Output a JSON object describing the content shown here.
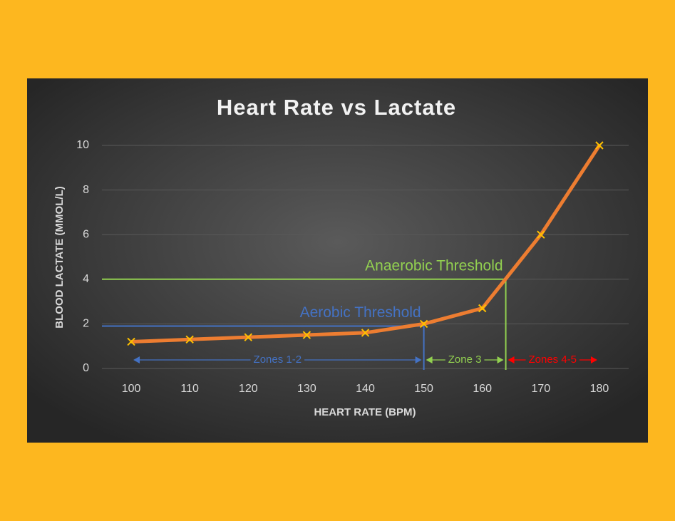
{
  "chart_data": {
    "type": "line",
    "title": "Heart Rate vs Lactate",
    "x_label": "HEART RATE (BPM)",
    "y_label": "BLOOD LACTATE (MMOL/L)",
    "x": [
      100,
      110,
      120,
      130,
      140,
      150,
      160,
      170,
      180
    ],
    "series": [
      {
        "color": "#ED7D31",
        "marker_color": "#FFC000",
        "values": [
          1.2,
          1.3,
          1.4,
          1.5,
          1.6,
          2.0,
          2.7,
          6.0,
          10
        ]
      }
    ],
    "xlim": [
      95,
      185
    ],
    "xticks": [
      100,
      110,
      120,
      130,
      140,
      150,
      160,
      170,
      180
    ],
    "ylim": [
      0,
      10
    ],
    "yticks": [
      0,
      2,
      4,
      6,
      8,
      10
    ],
    "grid": true,
    "thresholds": [
      {
        "label": "Aerobic Threshold",
        "x": 150,
        "y": 1.9,
        "color": "#4472C4"
      },
      {
        "label": "Anaerobic Threshold",
        "x": 164,
        "y": 4,
        "color": "#92D050"
      }
    ],
    "zones": [
      {
        "label": "Zones 1-2",
        "from": 100,
        "to": 150,
        "color": "#4472C4"
      },
      {
        "label": "Zone 3",
        "from": 150,
        "to": 164,
        "color": "#92D050"
      },
      {
        "label": "Zones 4-5",
        "from": 164,
        "to": 180,
        "color": "#FF0000"
      }
    ]
  }
}
